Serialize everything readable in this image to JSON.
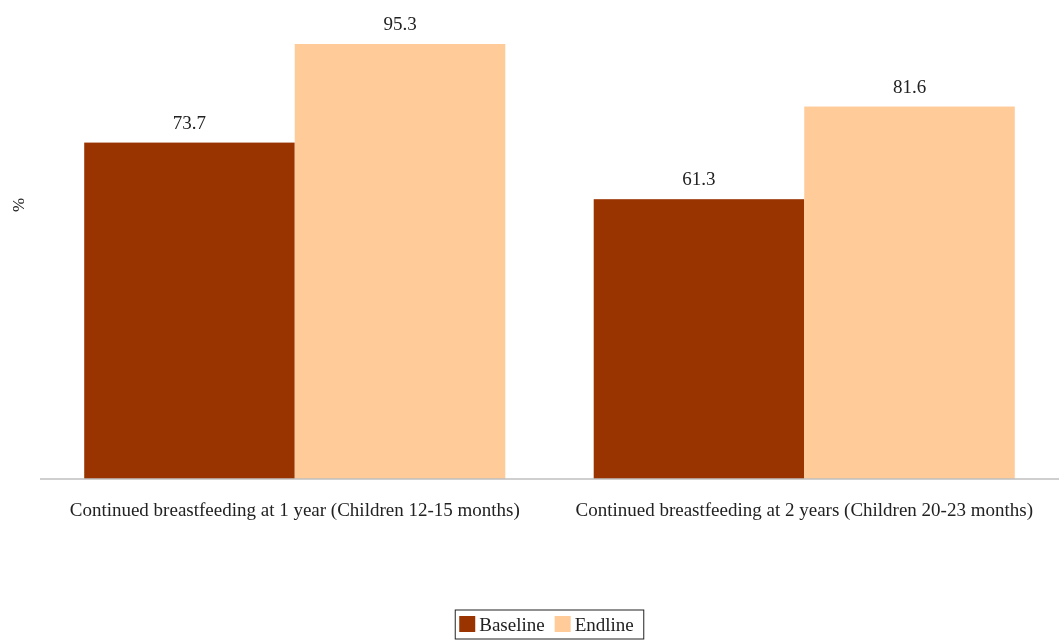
{
  "chart_data": {
    "type": "bar",
    "ylabel": "%",
    "categories": [
      "Continued breastfeeding at 1 year (Children 12-15 months)",
      "Continued breastfeeding at 2 years (Children 20-23 months)"
    ],
    "series": [
      {
        "name": "Baseline",
        "color": "#993300",
        "values": [
          73.7,
          61.3
        ]
      },
      {
        "name": "Endline",
        "color": "#ffcc99",
        "values": [
          95.3,
          81.6
        ]
      }
    ],
    "data_labels": true,
    "legend": "bottom",
    "grid": false
  }
}
